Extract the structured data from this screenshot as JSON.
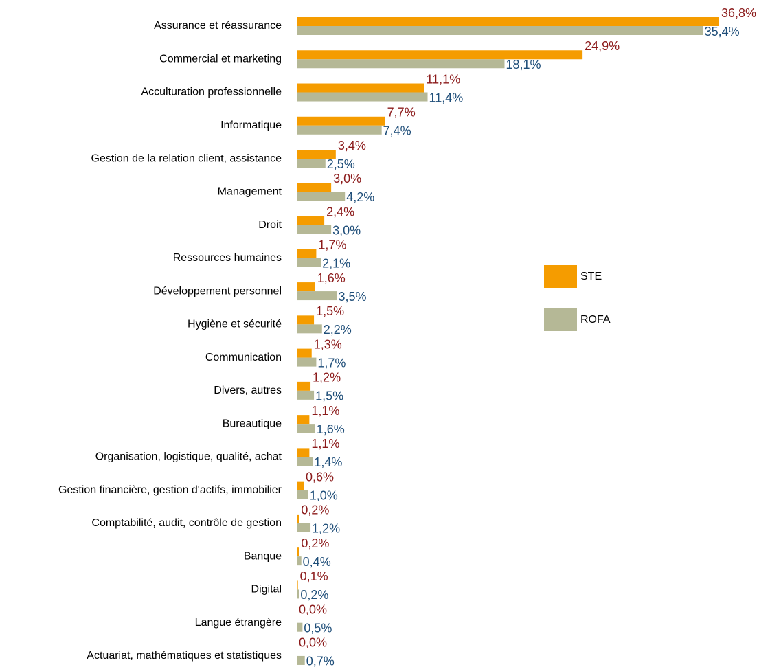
{
  "chart_data": {
    "type": "bar",
    "orientation": "horizontal",
    "categories": [
      "Assurance et réassurance",
      "Commercial et marketing",
      "Acculturation professionnelle",
      "Informatique",
      "Gestion de la relation client, assistance",
      "Management",
      "Droit",
      "Ressources humaines",
      "Développement personnel",
      "Hygiène et sécurité",
      "Communication",
      "Divers, autres",
      "Bureautique",
      "Organisation, logistique, qualité, achat",
      "Gestion financière, gestion d'actifs, immobilier",
      "Comptabilité, audit, contrôle de gestion",
      "Banque",
      "Digital",
      "Langue étrangère",
      "Actuariat, mathématiques et statistiques"
    ],
    "series": [
      {
        "name": "STE",
        "color": "#f59c00",
        "label_color": "#8b1a1a",
        "values": [
          36.8,
          24.9,
          11.1,
          7.7,
          3.4,
          3.0,
          2.4,
          1.7,
          1.6,
          1.5,
          1.3,
          1.2,
          1.1,
          1.1,
          0.6,
          0.2,
          0.2,
          0.1,
          0.0,
          0.0
        ],
        "value_labels": [
          "36,8%",
          "24,9%",
          "11,1%",
          "7,7%",
          "3,4%",
          "3,0%",
          "2,4%",
          "1,7%",
          "1,6%",
          "1,5%",
          "1,3%",
          "1,2%",
          "1,1%",
          "1,1%",
          "0,6%",
          "0,2%",
          "0,2%",
          "0,1%",
          "0,0%",
          "0,0%"
        ]
      },
      {
        "name": "ROFA",
        "color": "#b5b896",
        "label_color": "#1f4e79",
        "values": [
          35.4,
          18.1,
          11.4,
          7.4,
          2.5,
          4.2,
          3.0,
          2.1,
          3.5,
          2.2,
          1.7,
          1.5,
          1.6,
          1.4,
          1.0,
          1.2,
          0.4,
          0.2,
          0.5,
          0.7
        ],
        "value_labels": [
          "35,4%",
          "18,1%",
          "11,4%",
          "7,4%",
          "2,5%",
          "4,2%",
          "3,0%",
          "2,1%",
          "3,5%",
          "2,2%",
          "1,7%",
          "1,5%",
          "1,6%",
          "1,4%",
          "1,0%",
          "1,2%",
          "0,4%",
          "0,2%",
          "0,5%",
          "0,7%"
        ]
      }
    ],
    "legend": "right"
  }
}
